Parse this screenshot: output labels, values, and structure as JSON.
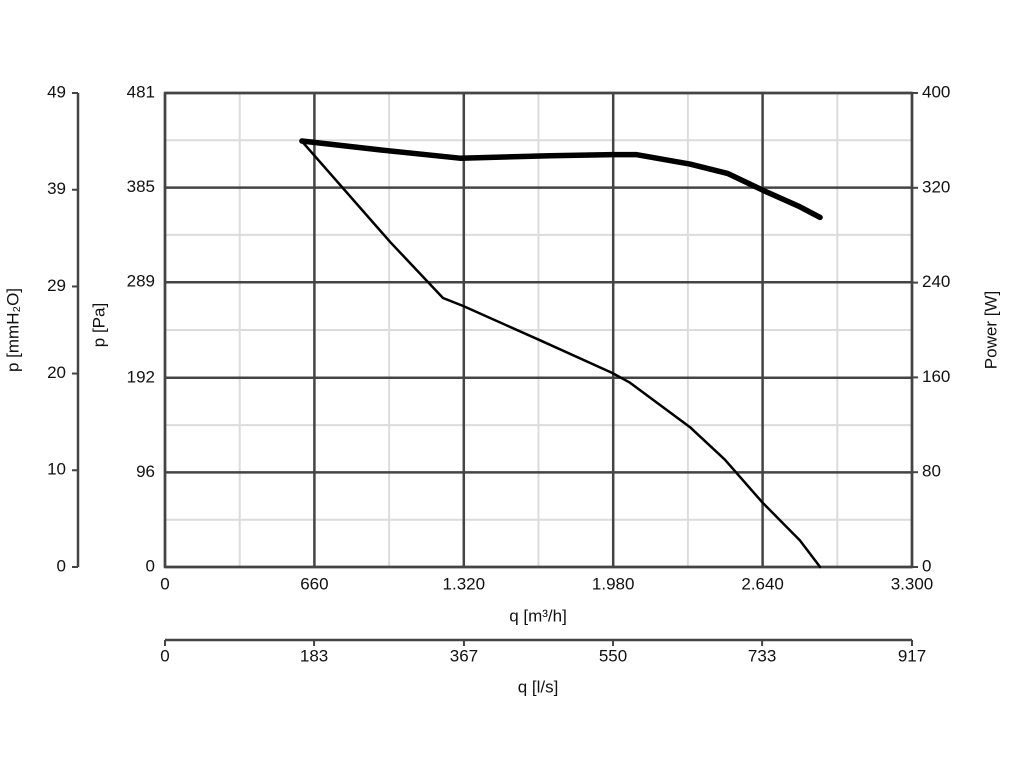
{
  "chart_data": {
    "type": "line",
    "xlabel": "q [m³/h]",
    "xlim": [
      0,
      3300
    ],
    "xticks": [
      0,
      660,
      {
        "value": 1320,
        "label": "1.320"
      },
      {
        "value": 1980,
        "label": "1.980"
      },
      {
        "value": 2640,
        "label": "2.640"
      },
      {
        "value": 3300,
        "label": "3.300"
      }
    ],
    "x2label": "q [l/s]",
    "x2lim": [
      0,
      917
    ],
    "x2ticks": [
      0,
      183,
      367,
      550,
      733,
      917
    ],
    "ylabel": "p [Pa]",
    "ylim": [
      0,
      481
    ],
    "yticks": [
      0,
      96,
      192,
      289,
      385,
      481
    ],
    "yalt_label": "p [mmH₂O]",
    "yalt_lim": [
      0,
      49
    ],
    "yalt_ticks": [
      0,
      10,
      20,
      29,
      39,
      49
    ],
    "y2label": "Power [W]",
    "y2lim": [
      0,
      400
    ],
    "y2ticks": [
      0,
      80,
      160,
      240,
      320,
      400
    ],
    "grid": true,
    "minor_grid": true,
    "series": [
      {
        "color": "#000000",
        "line_width": 2.5,
        "x": [
          605,
          994,
          1228,
          1316,
          1657,
          1975,
          2054,
          2319,
          2473,
          2641,
          2805,
          2894
        ],
        "values": [
          432,
          330,
          273,
          265,
          230,
          197,
          187,
          142,
          109,
          65,
          27,
          0
        ]
      },
      {
        "color": "#000000",
        "line_width": 5.5,
        "axis": "y2",
        "x": [
          605,
          950,
          1303,
          1701,
          1975,
          2081,
          2319,
          2487,
          2641,
          2805,
          2894
        ],
        "values": [
          359.5,
          352,
          345,
          347,
          348,
          348,
          340,
          332,
          318,
          304,
          295
        ]
      }
    ]
  }
}
